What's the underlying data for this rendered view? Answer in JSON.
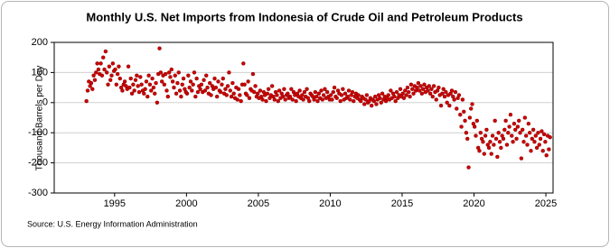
{
  "chart_data": {
    "type": "scatter",
    "title": "Monthly U.S. Net Imports from Indonesia of Crude Oil and Petroleum Products",
    "y_label": "Thousand Barrels per Day",
    "source": "Source: U.S. Energy Information Administration",
    "color": "#cc0000",
    "grid": true,
    "xlim": [
      1990.8,
      2025.5
    ],
    "xticks": [
      1995,
      2000,
      2005,
      2010,
      2015,
      2020,
      2025
    ],
    "ylim": [
      -300,
      200
    ],
    "yticks": [
      -300,
      -200,
      -100,
      0,
      100,
      200
    ],
    "x": [
      "1993-01",
      "1993-02",
      "1993-03",
      "1993-04",
      "1993-05",
      "1993-06",
      "1993-07",
      "1993-08",
      "1993-09",
      "1993-10",
      "1993-11",
      "1993-12",
      "1994-01",
      "1994-02",
      "1994-03",
      "1994-04",
      "1994-05",
      "1994-06",
      "1994-07",
      "1994-08",
      "1994-09",
      "1994-10",
      "1994-11",
      "1994-12",
      "1995-01",
      "1995-02",
      "1995-03",
      "1995-04",
      "1995-05",
      "1995-06",
      "1995-07",
      "1995-08",
      "1995-09",
      "1995-10",
      "1995-11",
      "1995-12",
      "1996-01",
      "1996-02",
      "1996-03",
      "1996-04",
      "1996-05",
      "1996-06",
      "1996-07",
      "1996-08",
      "1996-09",
      "1996-10",
      "1996-11",
      "1996-12",
      "1997-01",
      "1997-02",
      "1997-03",
      "1997-04",
      "1997-05",
      "1997-06",
      "1997-07",
      "1997-08",
      "1997-09",
      "1997-10",
      "1997-11",
      "1997-12",
      "1998-01",
      "1998-02",
      "1998-03",
      "1998-04",
      "1998-05",
      "1998-06",
      "1998-07",
      "1998-08",
      "1998-09",
      "1998-10",
      "1998-11",
      "1998-12",
      "1999-01",
      "1999-02",
      "1999-03",
      "1999-04",
      "1999-05",
      "1999-06",
      "1999-07",
      "1999-08",
      "1999-09",
      "1999-10",
      "1999-11",
      "1999-12",
      "2000-01",
      "2000-02",
      "2000-03",
      "2000-04",
      "2000-05",
      "2000-06",
      "2000-07",
      "2000-08",
      "2000-09",
      "2000-10",
      "2000-11",
      "2000-12",
      "2001-01",
      "2001-02",
      "2001-03",
      "2001-04",
      "2001-05",
      "2001-06",
      "2001-07",
      "2001-08",
      "2001-09",
      "2001-10",
      "2001-11",
      "2001-12",
      "2002-01",
      "2002-02",
      "2002-03",
      "2002-04",
      "2002-05",
      "2002-06",
      "2002-07",
      "2002-08",
      "2002-09",
      "2002-10",
      "2002-11",
      "2002-12",
      "2003-01",
      "2003-02",
      "2003-03",
      "2003-04",
      "2003-05",
      "2003-06",
      "2003-07",
      "2003-08",
      "2003-09",
      "2003-10",
      "2003-11",
      "2003-12",
      "2004-01",
      "2004-02",
      "2004-03",
      "2004-04",
      "2004-05",
      "2004-06",
      "2004-07",
      "2004-08",
      "2004-09",
      "2004-10",
      "2004-11",
      "2004-12",
      "2005-01",
      "2005-02",
      "2005-03",
      "2005-04",
      "2005-05",
      "2005-06",
      "2005-07",
      "2005-08",
      "2005-09",
      "2005-10",
      "2005-11",
      "2005-12",
      "2006-01",
      "2006-02",
      "2006-03",
      "2006-04",
      "2006-05",
      "2006-06",
      "2006-07",
      "2006-08",
      "2006-09",
      "2006-10",
      "2006-11",
      "2006-12",
      "2007-01",
      "2007-02",
      "2007-03",
      "2007-04",
      "2007-05",
      "2007-06",
      "2007-07",
      "2007-08",
      "2007-09",
      "2007-10",
      "2007-11",
      "2007-12",
      "2008-01",
      "2008-02",
      "2008-03",
      "2008-04",
      "2008-05",
      "2008-06",
      "2008-07",
      "2008-08",
      "2008-09",
      "2008-10",
      "2008-11",
      "2008-12",
      "2009-01",
      "2009-02",
      "2009-03",
      "2009-04",
      "2009-05",
      "2009-06",
      "2009-07",
      "2009-08",
      "2009-09",
      "2009-10",
      "2009-11",
      "2009-12",
      "2010-01",
      "2010-02",
      "2010-03",
      "2010-04",
      "2010-05",
      "2010-06",
      "2010-07",
      "2010-08",
      "2010-09",
      "2010-10",
      "2010-11",
      "2010-12",
      "2011-01",
      "2011-02",
      "2011-03",
      "2011-04",
      "2011-05",
      "2011-06",
      "2011-07",
      "2011-08",
      "2011-09",
      "2011-10",
      "2011-11",
      "2011-12",
      "2012-01",
      "2012-02",
      "2012-03",
      "2012-04",
      "2012-05",
      "2012-06",
      "2012-07",
      "2012-08",
      "2012-09",
      "2012-10",
      "2012-11",
      "2012-12",
      "2013-01",
      "2013-02",
      "2013-03",
      "2013-04",
      "2013-05",
      "2013-06",
      "2013-07",
      "2013-08",
      "2013-09",
      "2013-10",
      "2013-11",
      "2013-12",
      "2014-01",
      "2014-02",
      "2014-03",
      "2014-04",
      "2014-05",
      "2014-06",
      "2014-07",
      "2014-08",
      "2014-09",
      "2014-10",
      "2014-11",
      "2014-12",
      "2015-01",
      "2015-02",
      "2015-03",
      "2015-04",
      "2015-05",
      "2015-06",
      "2015-07",
      "2015-08",
      "2015-09",
      "2015-10",
      "2015-11",
      "2015-12",
      "2016-01",
      "2016-02",
      "2016-03",
      "2016-04",
      "2016-05",
      "2016-06",
      "2016-07",
      "2016-08",
      "2016-09",
      "2016-10",
      "2016-11",
      "2016-12",
      "2017-01",
      "2017-02",
      "2017-03",
      "2017-04",
      "2017-05",
      "2017-06",
      "2017-07",
      "2017-08",
      "2017-09",
      "2017-10",
      "2017-11",
      "2017-12",
      "2018-01",
      "2018-02",
      "2018-03",
      "2018-04",
      "2018-05",
      "2018-06",
      "2018-07",
      "2018-08",
      "2018-09",
      "2018-10",
      "2018-11",
      "2018-12",
      "2019-01",
      "2019-02",
      "2019-03",
      "2019-04",
      "2019-05",
      "2019-06",
      "2019-07",
      "2019-08",
      "2019-09",
      "2019-10",
      "2019-11",
      "2019-12",
      "2020-01",
      "2020-02",
      "2020-03",
      "2020-04",
      "2020-05",
      "2020-06",
      "2020-07",
      "2020-08",
      "2020-09",
      "2020-10",
      "2020-11",
      "2020-12",
      "2021-01",
      "2021-02",
      "2021-03",
      "2021-04",
      "2021-05",
      "2021-06",
      "2021-07",
      "2021-08",
      "2021-09",
      "2021-10",
      "2021-11",
      "2021-12",
      "2022-01",
      "2022-02",
      "2022-03",
      "2022-04",
      "2022-05",
      "2022-06",
      "2022-07",
      "2022-08",
      "2022-09",
      "2022-10",
      "2022-11",
      "2022-12",
      "2023-01",
      "2023-02",
      "2023-03",
      "2023-04",
      "2023-05",
      "2023-06",
      "2023-07",
      "2023-08",
      "2023-09",
      "2023-10",
      "2023-11",
      "2023-12",
      "2024-01",
      "2024-02",
      "2024-03",
      "2024-04",
      "2024-05",
      "2024-06",
      "2024-07",
      "2024-08",
      "2024-09",
      "2024-10",
      "2024-11",
      "2024-12",
      "2025-01",
      "2025-02",
      "2025-03",
      "2025-04"
    ],
    "values": [
      5,
      40,
      70,
      55,
      65,
      45,
      90,
      75,
      100,
      130,
      110,
      95,
      130,
      90,
      150,
      110,
      170,
      100,
      60,
      120,
      75,
      90,
      130,
      105,
      110,
      60,
      95,
      120,
      80,
      50,
      40,
      60,
      70,
      55,
      45,
      120,
      50,
      80,
      30,
      60,
      40,
      75,
      90,
      55,
      35,
      85,
      60,
      40,
      30,
      45,
      70,
      20,
      90,
      60,
      40,
      80,
      50,
      30,
      65,
      0,
      95,
      180,
      100,
      70,
      90,
      60,
      95,
      40,
      20,
      100,
      85,
      110,
      70,
      50,
      90,
      30,
      65,
      100,
      40,
      20,
      60,
      80,
      45,
      35,
      30,
      90,
      50,
      70,
      40,
      60,
      100,
      20,
      80,
      35,
      55,
      45,
      60,
      35,
      75,
      40,
      90,
      50,
      30,
      65,
      25,
      55,
      45,
      80,
      50,
      20,
      70,
      40,
      35,
      60,
      80,
      30,
      45,
      25,
      55,
      100,
      40,
      20,
      65,
      30,
      15,
      50,
      10,
      45,
      25,
      5,
      60,
      130,
      60,
      30,
      25,
      70,
      15,
      45,
      40,
      95,
      35,
      55,
      20,
      30,
      15,
      40,
      20,
      10,
      35,
      25,
      5,
      30,
      45,
      15,
      25,
      55,
      20,
      10,
      35,
      25,
      5,
      40,
      15,
      30,
      20,
      45,
      10,
      25,
      30,
      15,
      20,
      45,
      10,
      35,
      25,
      5,
      30,
      20,
      40,
      15,
      25,
      10,
      35,
      20,
      45,
      15,
      5,
      30,
      25,
      20,
      10,
      35,
      20,
      5,
      30,
      15,
      40,
      10,
      25,
      45,
      15,
      35,
      20,
      10,
      25,
      10,
      35,
      50,
      20,
      15,
      40,
      30,
      5,
      25,
      45,
      10,
      30,
      15,
      20,
      40,
      10,
      25,
      35,
      5,
      20,
      30,
      15,
      25,
      10,
      5,
      20,
      15,
      -5,
      10,
      25,
      0,
      5,
      15,
      -10,
      10,
      5,
      20,
      -5,
      10,
      25,
      15,
      0,
      30,
      10,
      20,
      5,
      15,
      25,
      10,
      40,
      15,
      30,
      20,
      5,
      35,
      15,
      25,
      45,
      20,
      30,
      15,
      40,
      25,
      50,
      35,
      20,
      60,
      45,
      30,
      55,
      40,
      50,
      65,
      40,
      55,
      30,
      45,
      60,
      35,
      50,
      40,
      55,
      30,
      45,
      20,
      55,
      35,
      10,
      40,
      50,
      25,
      -10,
      30,
      45,
      20,
      35,
      0,
      25,
      -10,
      30,
      40,
      20,
      10,
      35,
      -20,
      15,
      25,
      -40,
      -80,
      10,
      -30,
      -60,
      -100,
      -120,
      -215,
      -50,
      -20,
      -5,
      -70,
      -80,
      -110,
      -60,
      -150,
      -160,
      -100,
      -120,
      -130,
      -170,
      -110,
      -90,
      -140,
      -150,
      -130,
      -170,
      -110,
      -140,
      -60,
      -120,
      -180,
      -100,
      -130,
      -150,
      -110,
      -120,
      -90,
      -60,
      -140,
      -100,
      -80,
      -40,
      -110,
      -130,
      -70,
      -90,
      -120,
      -80,
      -60,
      -100,
      -185,
      -90,
      -130,
      -50,
      -110,
      -140,
      -70,
      -100,
      -160,
      -120,
      -90,
      -130,
      -110,
      -150,
      -100,
      -140,
      -120,
      -95,
      -160,
      -105,
      -130,
      -175,
      -110,
      -155,
      -115
    ]
  }
}
